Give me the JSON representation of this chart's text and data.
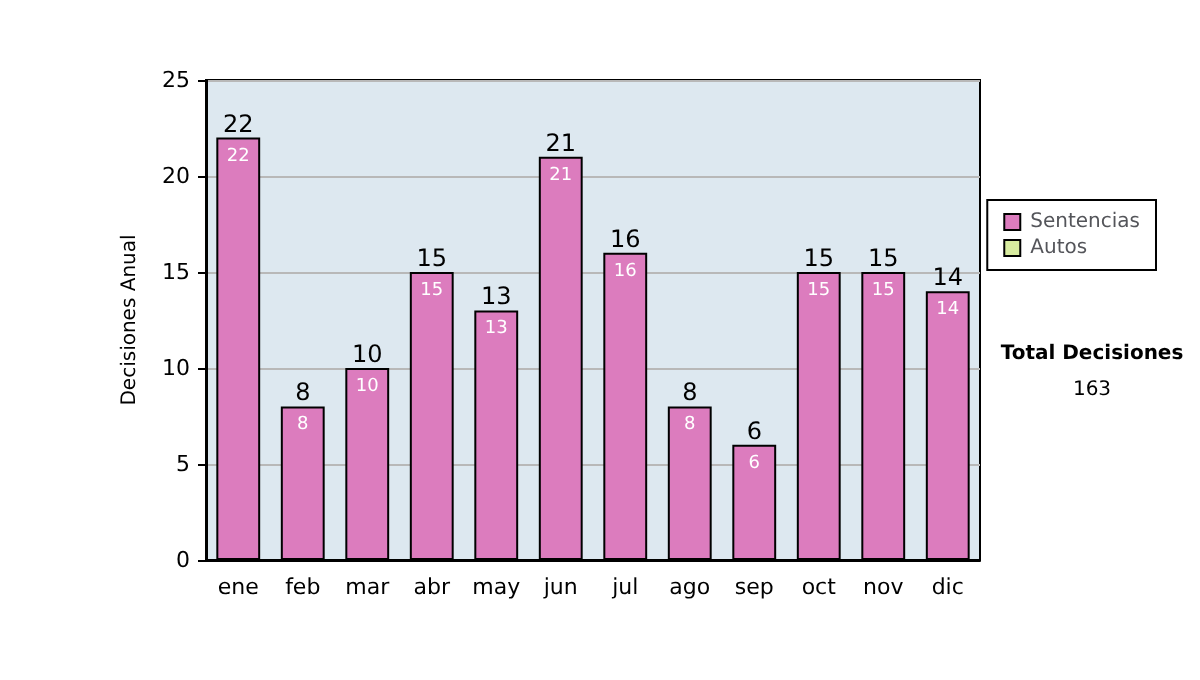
{
  "chart_data": {
    "type": "bar",
    "ylabel": "Decisiones Anual",
    "categories": [
      "ene",
      "feb",
      "mar",
      "abr",
      "may",
      "jun",
      "jul",
      "ago",
      "sep",
      "oct",
      "nov",
      "dic"
    ],
    "series": [
      {
        "name": "Sentencias",
        "color": "#dc7cbe",
        "values": [
          22,
          8,
          10,
          15,
          13,
          21,
          16,
          8,
          6,
          15,
          15,
          14
        ],
        "value_labels": [
          "22",
          "8",
          "10",
          "15",
          "13",
          "21",
          "16",
          "8",
          "6",
          "15",
          "15",
          "14"
        ]
      },
      {
        "name": "Autos",
        "color": "#d8eca0",
        "values": [
          0,
          0,
          0,
          0,
          0,
          0,
          0,
          0,
          0,
          0,
          0,
          0
        ]
      }
    ],
    "stacked": true,
    "totals": [
      "22",
      "8",
      "10",
      "15",
      "13",
      "21",
      "16",
      "8",
      "6",
      "15",
      "15",
      "14"
    ],
    "ylim": [
      0,
      25
    ],
    "yticks": [
      0,
      5,
      10,
      15,
      20,
      25
    ],
    "grid": "y",
    "legend": "right",
    "annotations": [
      "Total Decisiones",
      "163"
    ]
  }
}
